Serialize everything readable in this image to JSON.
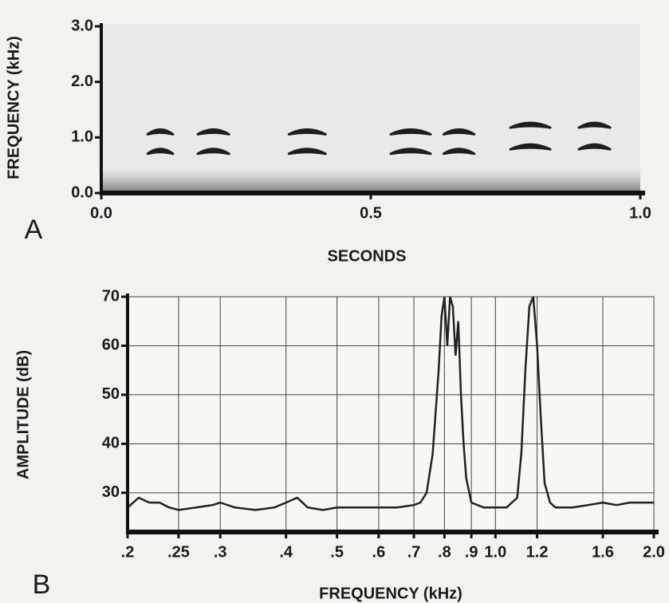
{
  "chart_data": [
    {
      "type": "spectrogram",
      "label": "A",
      "xlabel": "SECONDS",
      "ylabel": "FREQUENCY (kHz)",
      "xlim": [
        0,
        1
      ],
      "xticks": [
        {
          "value": 0,
          "label": "0.0"
        },
        0.5,
        {
          "value": 1,
          "label": "1.0"
        }
      ],
      "ylim": [
        0,
        3
      ],
      "yticks": [
        {
          "value": 0,
          "label": "0.0"
        },
        {
          "value": 1,
          "label": "1.0"
        },
        {
          "value": 2,
          "label": "2.0"
        },
        {
          "value": 3,
          "label": "3.0"
        }
      ],
      "color": "#1e1e1e",
      "segments": [
        {
          "start": 0.086,
          "end": 0.133,
          "frequency": 1.1
        },
        {
          "start": 0.086,
          "end": 0.133,
          "frequency": 0.75
        },
        {
          "start": 0.179,
          "end": 0.237,
          "frequency": 1.1
        },
        {
          "start": 0.179,
          "end": 0.237,
          "frequency": 0.75
        },
        {
          "start": 0.348,
          "end": 0.416,
          "frequency": 1.1
        },
        {
          "start": 0.348,
          "end": 0.416,
          "frequency": 0.75
        },
        {
          "start": 0.537,
          "end": 0.611,
          "frequency": 1.1
        },
        {
          "start": 0.537,
          "end": 0.611,
          "frequency": 0.75
        },
        {
          "start": 0.635,
          "end": 0.692,
          "frequency": 1.1
        },
        {
          "start": 0.635,
          "end": 0.692,
          "frequency": 0.75
        },
        {
          "start": 0.759,
          "end": 0.833,
          "frequency": 1.22
        },
        {
          "start": 0.759,
          "end": 0.833,
          "frequency": 0.83
        },
        {
          "start": 0.886,
          "end": 0.944,
          "frequency": 1.22
        },
        {
          "start": 0.886,
          "end": 0.944,
          "frequency": 0.83
        }
      ]
    },
    {
      "type": "line",
      "label": "B",
      "xlabel": "FREQUENCY (kHz)",
      "ylabel": "AMPLITUDE (dB)",
      "xscale": "log",
      "grid": true,
      "xlim": [
        0.2,
        2.0
      ],
      "xticks": [
        {
          "value": 0.2,
          "label": ".2"
        },
        {
          "value": 0.25,
          "label": ".25"
        },
        {
          "value": 0.3,
          "label": ".3"
        },
        {
          "value": 0.4,
          "label": ".4"
        },
        {
          "value": 0.5,
          "label": ".5"
        },
        {
          "value": 0.6,
          "label": ".6"
        },
        {
          "value": 0.7,
          "label": ".7"
        },
        {
          "value": 0.8,
          "label": ".8"
        },
        {
          "value": 0.9,
          "label": ".9"
        },
        {
          "value": 1.0,
          "label": "1.0"
        },
        1.2,
        1.6,
        {
          "value": 2.0,
          "label": "2.0"
        }
      ],
      "ylim": [
        22,
        70
      ],
      "yticks": [
        30,
        40,
        50,
        60,
        70
      ],
      "color": "#222222",
      "x": [
        0.2,
        0.21,
        0.22,
        0.23,
        0.24,
        0.25,
        0.27,
        0.29,
        0.3,
        0.32,
        0.35,
        0.38,
        0.4,
        0.42,
        0.44,
        0.47,
        0.5,
        0.55,
        0.6,
        0.65,
        0.7,
        0.72,
        0.74,
        0.76,
        0.78,
        0.79,
        0.8,
        0.81,
        0.82,
        0.83,
        0.84,
        0.85,
        0.86,
        0.87,
        0.88,
        0.9,
        0.95,
        1.0,
        1.05,
        1.1,
        1.12,
        1.14,
        1.16,
        1.18,
        1.2,
        1.22,
        1.24,
        1.27,
        1.3,
        1.4,
        1.5,
        1.6,
        1.7,
        1.8,
        1.9,
        2.0
      ],
      "values": [
        27,
        29,
        28,
        28,
        27,
        26.5,
        27,
        27.5,
        28,
        27,
        26.5,
        27,
        28,
        29,
        27,
        26.5,
        27,
        27,
        27,
        27,
        27.5,
        28,
        30,
        38,
        55,
        66,
        70,
        60,
        70,
        68,
        58,
        65,
        50,
        40,
        33,
        28,
        27,
        27,
        27,
        29,
        38,
        55,
        68,
        70,
        60,
        45,
        32,
        28,
        27,
        27,
        27.5,
        28,
        27.5,
        28,
        28,
        28
      ]
    }
  ]
}
